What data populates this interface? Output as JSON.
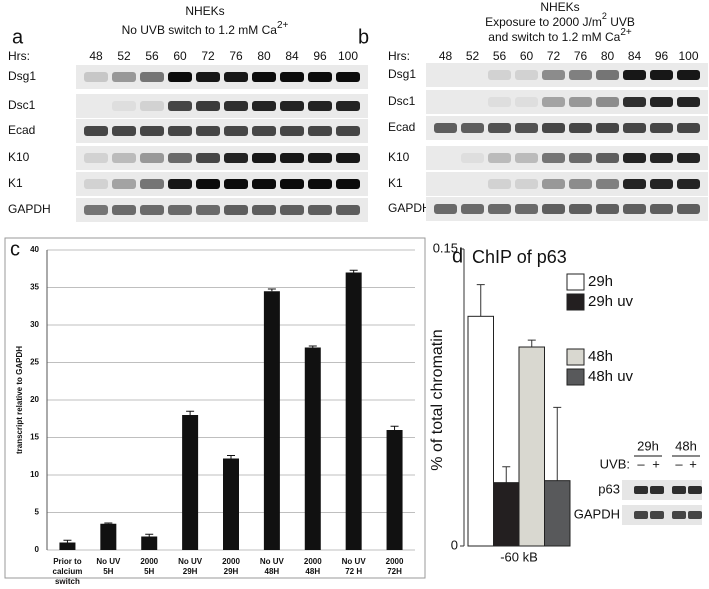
{
  "panel_a": {
    "letter": "a",
    "title": "NHEKs",
    "subtitle": "No UVB switch to 1.2 mM Ca",
    "subtitle_sup": "2+",
    "hours_label": "Hrs:",
    "hours": [
      "48",
      "52",
      "56",
      "60",
      "72",
      "76",
      "80",
      "84",
      "96",
      "100"
    ],
    "rows": [
      "Dsg1",
      "Dsc1",
      "Ecad",
      "K10",
      "K1",
      "GAPDH"
    ]
  },
  "panel_b": {
    "letter": "b",
    "title": "NHEKs",
    "subtitle": "Exposure to 2000 J/m",
    "subtitle_sup": "2",
    "subtitle_end": " UVB",
    "subtitle2": "and switch to 1.2 mM Ca",
    "subtitle2_sup": "2+",
    "hours_label": "Hrs:",
    "hours": [
      "48",
      "52",
      "56",
      "60",
      "72",
      "76",
      "80",
      "84",
      "96",
      "100"
    ],
    "rows": [
      "Dsg1",
      "Dsc1",
      "Ecad",
      "K10",
      "K1",
      "GAPDH"
    ]
  },
  "chart_data": [
    {
      "type": "bar",
      "letter": "c",
      "y_label": "transcript relative to GAPDH",
      "categories": [
        "Prior to\ncalcium\nswitch",
        "No UV\n5H",
        "2000\n5H",
        "No UV\n29H",
        "2000\n29H",
        "No UV\n48H",
        "2000\n48H",
        "No UV\n72 H",
        "2000\n72H"
      ],
      "values": [
        1,
        3.5,
        1.8,
        18,
        12.2,
        34.5,
        27,
        37,
        16
      ],
      "errors": [
        0.3,
        0.1,
        0.3,
        0.5,
        0.4,
        0.3,
        0.2,
        0.3,
        0.5
      ],
      "color": "#111111",
      "ylim": [
        0,
        40
      ],
      "yticks": [
        0,
        5,
        10,
        15,
        20,
        25,
        30,
        35,
        40
      ],
      "grid": true
    },
    {
      "type": "grouped-bar",
      "letter": "d",
      "title": "ChIP of p63",
      "y_label": "% of total chromatin",
      "categories": [
        "-60 kB"
      ],
      "ylim": [
        0,
        0.15
      ],
      "yticks": [
        0,
        0.15
      ],
      "series": [
        {
          "name": "29h",
          "color": "#ffffff",
          "values": [
            0.116
          ],
          "errors": [
            0.016
          ]
        },
        {
          "name": "29h uv",
          "color": "#231f20",
          "values": [
            0.032
          ],
          "errors": [
            0.008
          ]
        },
        {
          "name": "48h",
          "color": "#d9d8d0",
          "values": [
            0.1005
          ],
          "errors": [
            0.0035
          ]
        },
        {
          "name": "48h uv",
          "color": "#58595b",
          "values": [
            0.033
          ],
          "errors": [
            0.037
          ]
        }
      ],
      "inset": {
        "groups": [
          "29h",
          "48h"
        ],
        "uvb_label": "UVB:",
        "signs": [
          "–",
          "+",
          "–",
          "+"
        ],
        "rows": [
          "p63",
          "GAPDH"
        ]
      }
    }
  ]
}
